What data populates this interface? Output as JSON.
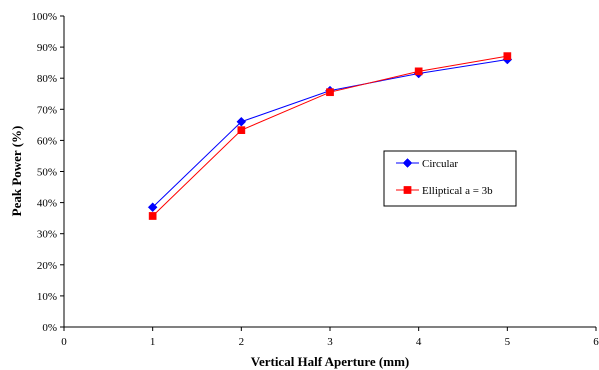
{
  "chart_data": {
    "type": "line",
    "title": "",
    "xlabel": "Vertical Half Aperture (mm)",
    "ylabel": "Peak Power (%)",
    "xlim": [
      0,
      6
    ],
    "ylim": [
      0,
      100
    ],
    "x_ticks": [
      "0",
      "1",
      "2",
      "3",
      "4",
      "5",
      "6"
    ],
    "y_ticks": [
      "0%",
      "10%",
      "20%",
      "30%",
      "40%",
      "50%",
      "60%",
      "70%",
      "80%",
      "90%",
      "100%"
    ],
    "grid": false,
    "legend_position": "right",
    "series": [
      {
        "name": "Circular",
        "color": "#0000ff",
        "marker": "diamond",
        "x": [
          1,
          2,
          3,
          4,
          5
        ],
        "y": [
          38.5,
          66,
          76,
          81.5,
          86
        ]
      },
      {
        "name": "Elliptical a = 3b",
        "color": "#ff0000",
        "marker": "square",
        "x": [
          1,
          2,
          3,
          4,
          5
        ],
        "y": [
          35.7,
          63.3,
          75.5,
          82.2,
          87.1
        ]
      }
    ]
  }
}
